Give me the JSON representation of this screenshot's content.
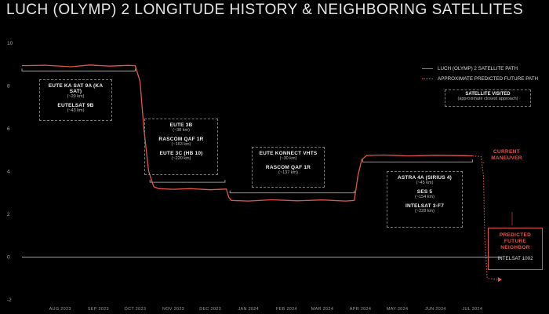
{
  "chart_data": {
    "type": "line",
    "title": "LUCH (OLYMP) 2 LONGITUDE HISTORY & NEIGHBORING SATELLITES",
    "xlabel": "",
    "ylabel": "",
    "xlim": [
      "2023-07-01",
      "2024-07-25"
    ],
    "ylim": [
      -2,
      10
    ],
    "yticks": [
      -2,
      0,
      2,
      4,
      6,
      8,
      10
    ],
    "xticks": [
      {
        "date": "2023-08-01",
        "label": "AUG 2023"
      },
      {
        "date": "2023-09-01",
        "label": "SEP 2023"
      },
      {
        "date": "2023-10-01",
        "label": "OCT 2023"
      },
      {
        "date": "2023-11-01",
        "label": "NOV 2023"
      },
      {
        "date": "2023-12-01",
        "label": "DEC 2023"
      },
      {
        "date": "2024-01-01",
        "label": "JAN 2024"
      },
      {
        "date": "2024-02-01",
        "label": "FEB 2024"
      },
      {
        "date": "2024-03-01",
        "label": "MAR 2024"
      },
      {
        "date": "2024-04-01",
        "label": "APR 2024"
      },
      {
        "date": "2024-05-01",
        "label": "MAY 2024"
      },
      {
        "date": "2024-06-01",
        "label": "JUN 2024"
      },
      {
        "date": "2024-07-01",
        "label": "JUL 2024"
      }
    ],
    "grid": false,
    "legend_position": "top-right",
    "series": [
      {
        "name": "LUCH (OLYMP) 2 SATELLITE PATH",
        "color": "#e0554a",
        "style": "solid",
        "points": [
          [
            "2023-07-01",
            8.95
          ],
          [
            "2023-07-20",
            8.97
          ],
          [
            "2023-08-10",
            8.9
          ],
          [
            "2023-08-25",
            8.98
          ],
          [
            "2023-09-10",
            8.93
          ],
          [
            "2023-09-25",
            8.96
          ],
          [
            "2023-10-01",
            8.95
          ],
          [
            "2023-10-05",
            8.2
          ],
          [
            "2023-10-08",
            6.0
          ],
          [
            "2023-10-12",
            4.0
          ],
          [
            "2023-10-16",
            3.3
          ],
          [
            "2023-10-20",
            3.2
          ],
          [
            "2023-11-01",
            3.17
          ],
          [
            "2023-11-15",
            3.2
          ],
          [
            "2023-12-01",
            3.15
          ],
          [
            "2023-12-14",
            3.18
          ],
          [
            "2023-12-16",
            2.8
          ],
          [
            "2023-12-18",
            2.65
          ],
          [
            "2024-01-01",
            2.62
          ],
          [
            "2024-01-20",
            2.68
          ],
          [
            "2024-02-10",
            2.63
          ],
          [
            "2024-03-01",
            2.67
          ],
          [
            "2024-03-20",
            2.62
          ],
          [
            "2024-03-27",
            2.65
          ],
          [
            "2024-03-30",
            3.8
          ],
          [
            "2024-04-02",
            4.55
          ],
          [
            "2024-04-06",
            4.75
          ],
          [
            "2024-04-20",
            4.77
          ],
          [
            "2024-05-10",
            4.73
          ],
          [
            "2024-06-01",
            4.76
          ],
          [
            "2024-06-25",
            4.74
          ],
          [
            "2024-07-01",
            4.73
          ]
        ]
      },
      {
        "name": "APPROXIMATE PREDICTED FUTURE PATH",
        "color": "#e0554a",
        "style": "dotted",
        "points": [
          [
            "2024-07-01",
            4.73
          ],
          [
            "2024-07-08",
            4.7
          ],
          [
            "2024-07-10",
            3.8
          ],
          [
            "2024-07-11",
            1.0
          ],
          [
            "2024-07-13",
            -1.0
          ],
          [
            "2024-07-25",
            -1.05
          ]
        ]
      }
    ],
    "reference_lines": [
      {
        "y": 0,
        "color": "#d9d9d9"
      }
    ],
    "period_brackets": [
      {
        "from": "2023-07-01",
        "to": "2023-10-01",
        "y": 8.7
      },
      {
        "from": "2023-10-13",
        "to": "2023-12-13",
        "y": 3.5
      },
      {
        "from": "2023-12-17",
        "to": "2024-03-27",
        "y": 3.0
      },
      {
        "from": "2024-04-03",
        "to": "2024-07-01",
        "y": 4.45
      }
    ],
    "neighbor_groups": [
      {
        "satellites": [
          {
            "name": "EUTE KA SAT 9A (KA SAT)",
            "distance": "(~20 km)"
          },
          {
            "name": "EUTELSAT 9B",
            "distance": "(~43 km)"
          }
        ]
      },
      {
        "satellites": [
          {
            "name": "EUTE 3B",
            "distance": "(~38 km)"
          },
          {
            "name": "RASCOM QAF 1R",
            "distance": "(~163 km)"
          },
          {
            "name": "EUTE 3C (HB 10)",
            "distance": "(~220 km)"
          }
        ]
      },
      {
        "satellites": [
          {
            "name": "EUTE KONNECT VHTS",
            "distance": "(~30 km)"
          },
          {
            "name": "RASCOM QAF 1R",
            "distance": "(~137 km)"
          }
        ]
      },
      {
        "satellites": [
          {
            "name": "ASTRA 4A (SIRIUS 4)",
            "distance": "(~45 km)"
          },
          {
            "name": "SES 5",
            "distance": "(~154 km)"
          },
          {
            "name": "INTELSAT 3-F7",
            "distance": "(~228 km)"
          }
        ]
      }
    ],
    "legend_box": {
      "title": "SATELLITE VISITED",
      "subtitle": "(approximate closest approach)"
    },
    "annotations": {
      "current_maneuver": [
        "CURRENT",
        "MANEUVER"
      ],
      "predicted_title": [
        "PREDICTED",
        "FUTURE",
        "NEIGHBOR"
      ],
      "predicted_neighbor": "INTELSAT 1002"
    }
  }
}
